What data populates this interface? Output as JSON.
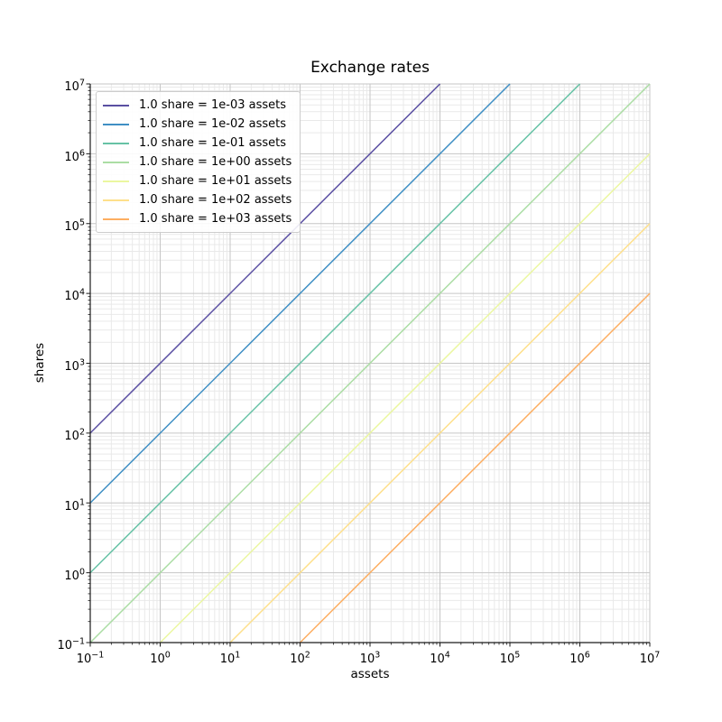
{
  "title": "Exchange rates",
  "chart_data": {
    "type": "line",
    "title": "Exchange rates",
    "xlabel": "assets",
    "ylabel": "shares",
    "xscale": "log",
    "yscale": "log",
    "xlim": [
      0.1,
      10000000
    ],
    "ylim": [
      0.1,
      10000000
    ],
    "tick_base": "10",
    "x_tick_exponents": [
      -1,
      0,
      1,
      2,
      3,
      4,
      5,
      6,
      7
    ],
    "y_tick_exponents": [
      -1,
      0,
      1,
      2,
      3,
      4,
      5,
      6,
      7
    ],
    "grid": {
      "major": true,
      "minor": true,
      "style": "solid"
    },
    "legend_position": "upper left",
    "series": [
      {
        "label": "1.0 share = 1e-03 assets",
        "assets_per_share": 0.001,
        "color": "#5a4fa2",
        "points": [
          [
            0.1,
            100
          ],
          [
            10000,
            10000000
          ]
        ]
      },
      {
        "label": "1.0 share = 1e-02 assets",
        "assets_per_share": 0.01,
        "color": "#3f8fc4",
        "points": [
          [
            0.1,
            10
          ],
          [
            100000,
            10000000
          ]
        ]
      },
      {
        "label": "1.0 share = 1e-01 assets",
        "assets_per_share": 0.1,
        "color": "#66c2a5",
        "points": [
          [
            0.1,
            1
          ],
          [
            1000000,
            10000000
          ]
        ]
      },
      {
        "label": "1.0 share = 1e+00 assets",
        "assets_per_share": 1,
        "color": "#abdda4",
        "points": [
          [
            0.1,
            0.1
          ],
          [
            10000000,
            10000000
          ]
        ]
      },
      {
        "label": "1.0 share = 1e+01 assets",
        "assets_per_share": 10,
        "color": "#ebf7a0",
        "points": [
          [
            1,
            0.1
          ],
          [
            10000000,
            1000000
          ]
        ]
      },
      {
        "label": "1.0 share = 1e+02 assets",
        "assets_per_share": 100,
        "color": "#fee08b",
        "points": [
          [
            10,
            0.1
          ],
          [
            10000000,
            100000
          ]
        ]
      },
      {
        "label": "1.0 share = 1e+03 assets",
        "assets_per_share": 1000,
        "color": "#fdae61",
        "points": [
          [
            100,
            0.1
          ],
          [
            10000000,
            10000
          ]
        ]
      }
    ]
  },
  "colors": {
    "background": "#ffffff",
    "major_grid": "#c6c6c6",
    "minor_grid": "#e9e9e9",
    "spine": "#1a1a1a",
    "tick": "#1a1a1a",
    "text": "#000000",
    "legend_border": "#cccccc"
  }
}
